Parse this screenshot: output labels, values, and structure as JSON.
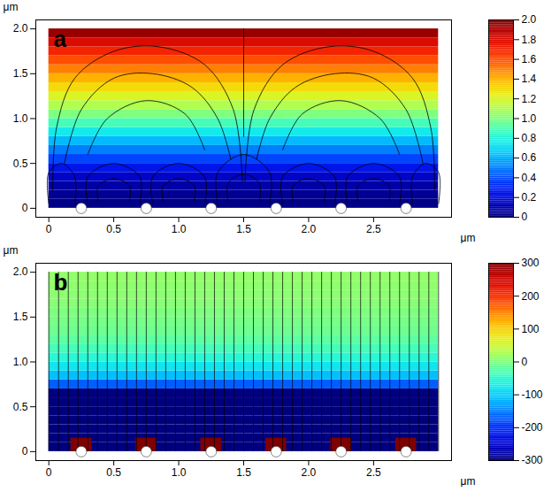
{
  "chart_data": [
    {
      "type": "heatmap",
      "label": "a",
      "xlabel": "μm",
      "ylabel": "μm",
      "xlim": [
        -0.1,
        3.1
      ],
      "ylim": [
        -0.1,
        2.1
      ],
      "xticks": [
        0,
        0.5,
        {
          "value": 1,
          "label": "1.0"
        },
        1.5,
        {
          "value": 2,
          "label": "2.0"
        },
        2.5
      ],
      "yticks": [
        0,
        0.5,
        {
          "value": 1,
          "label": "1.0"
        },
        1.5,
        {
          "value": 2,
          "label": "2.0"
        }
      ],
      "field": {
        "x_range": [
          0,
          3
        ],
        "y_edges": [
          0,
          0.1,
          0.2,
          0.3,
          0.4,
          0.5,
          0.6,
          0.7,
          0.8,
          0.9,
          1.0,
          1.1,
          1.2,
          1.3,
          1.4,
          1.5,
          1.6,
          1.7,
          1.8,
          1.9,
          2.0
        ],
        "values": [
          0.02,
          0.04,
          0.08,
          0.15,
          0.25,
          0.38,
          0.5,
          0.62,
          0.75,
          0.88,
          1.0,
          1.1,
          1.2,
          1.3,
          1.4,
          1.5,
          1.6,
          1.7,
          1.8,
          1.95
        ]
      },
      "colorbar": {
        "range": [
          0,
          2
        ],
        "ticks": [
          0,
          0.2,
          0.4,
          0.6,
          0.8,
          {
            "value": 1,
            "label": "1.0"
          },
          1.2,
          1.4,
          1.6,
          1.8,
          {
            "value": 2,
            "label": "2.0"
          }
        ]
      },
      "particles_x": [
        0.25,
        0.75,
        1.25,
        1.75,
        2.25,
        2.75
      ],
      "streamlines": [
        [
          [
            0.03,
            0.2
          ],
          [
            0.06,
            0.9
          ],
          [
            0.2,
            1.45
          ],
          [
            0.5,
            1.75
          ],
          [
            0.85,
            1.8
          ],
          [
            1.2,
            1.6
          ],
          [
            1.42,
            1.1
          ],
          [
            1.49,
            0.3
          ]
        ],
        [
          [
            0.12,
            0.5
          ],
          [
            0.25,
            1.1
          ],
          [
            0.5,
            1.45
          ],
          [
            0.8,
            1.5
          ],
          [
            1.1,
            1.35
          ],
          [
            1.3,
            1.0
          ],
          [
            1.4,
            0.55
          ]
        ],
        [
          [
            0.3,
            0.6
          ],
          [
            0.45,
            1.0
          ],
          [
            0.75,
            1.2
          ],
          [
            1.05,
            1.05
          ],
          [
            1.2,
            0.65
          ]
        ],
        [
          [
            2.97,
            0.2
          ],
          [
            2.94,
            0.9
          ],
          [
            2.8,
            1.45
          ],
          [
            2.5,
            1.75
          ],
          [
            2.15,
            1.8
          ],
          [
            1.8,
            1.6
          ],
          [
            1.58,
            1.1
          ],
          [
            1.51,
            0.3
          ]
        ],
        [
          [
            2.88,
            0.5
          ],
          [
            2.75,
            1.1
          ],
          [
            2.5,
            1.45
          ],
          [
            2.2,
            1.5
          ],
          [
            1.9,
            1.35
          ],
          [
            1.7,
            1.0
          ],
          [
            1.6,
            0.55
          ]
        ],
        [
          [
            2.7,
            0.6
          ],
          [
            2.55,
            1.0
          ],
          [
            2.25,
            1.2
          ],
          [
            1.95,
            1.05
          ],
          [
            1.8,
            0.65
          ]
        ],
        [
          [
            1.5,
            2.0
          ],
          [
            1.5,
            0.8
          ]
        ],
        [
          [
            0.0,
            0.05
          ],
          [
            0.0,
            0.4
          ],
          [
            0.1,
            0.5
          ],
          [
            0.2,
            0.35
          ],
          [
            0.2,
            0.05
          ]
        ],
        [
          [
            2.8,
            0.05
          ],
          [
            2.8,
            0.35
          ],
          [
            2.9,
            0.5
          ],
          [
            3.0,
            0.4
          ],
          [
            3.0,
            0.05
          ]
        ],
        [
          [
            0.3,
            0.05
          ],
          [
            0.3,
            0.35
          ],
          [
            0.5,
            0.5
          ],
          [
            0.7,
            0.35
          ],
          [
            0.7,
            0.05
          ]
        ],
        [
          [
            0.38,
            0.08
          ],
          [
            0.38,
            0.25
          ],
          [
            0.5,
            0.33
          ],
          [
            0.62,
            0.25
          ],
          [
            0.62,
            0.08
          ]
        ],
        [
          [
            0.8,
            0.05
          ],
          [
            0.8,
            0.35
          ],
          [
            1.0,
            0.5
          ],
          [
            1.2,
            0.35
          ],
          [
            1.2,
            0.05
          ]
        ],
        [
          [
            0.88,
            0.08
          ],
          [
            0.88,
            0.25
          ],
          [
            1.0,
            0.33
          ],
          [
            1.12,
            0.25
          ],
          [
            1.12,
            0.08
          ]
        ],
        [
          [
            1.3,
            0.05
          ],
          [
            1.3,
            0.4
          ],
          [
            1.5,
            0.6
          ],
          [
            1.7,
            0.4
          ],
          [
            1.7,
            0.05
          ]
        ],
        [
          [
            1.38,
            0.08
          ],
          [
            1.38,
            0.28
          ],
          [
            1.5,
            0.38
          ],
          [
            1.62,
            0.28
          ],
          [
            1.62,
            0.08
          ]
        ],
        [
          [
            1.8,
            0.05
          ],
          [
            1.8,
            0.35
          ],
          [
            2.0,
            0.5
          ],
          [
            2.2,
            0.35
          ],
          [
            2.2,
            0.05
          ]
        ],
        [
          [
            1.88,
            0.08
          ],
          [
            1.88,
            0.25
          ],
          [
            2.0,
            0.33
          ],
          [
            2.12,
            0.25
          ],
          [
            2.12,
            0.08
          ]
        ],
        [
          [
            2.3,
            0.05
          ],
          [
            2.3,
            0.35
          ],
          [
            2.5,
            0.5
          ],
          [
            2.7,
            0.35
          ],
          [
            2.7,
            0.05
          ]
        ],
        [
          [
            2.38,
            0.08
          ],
          [
            2.38,
            0.25
          ],
          [
            2.5,
            0.33
          ],
          [
            2.62,
            0.25
          ],
          [
            2.62,
            0.08
          ]
        ]
      ]
    },
    {
      "type": "heatmap",
      "label": "b",
      "xlabel": "μm",
      "ylabel": "μm",
      "xlim": [
        -0.1,
        3.1
      ],
      "ylim": [
        -0.1,
        2.1
      ],
      "xticks": [
        0,
        0.5,
        {
          "value": 1,
          "label": "1.0"
        },
        1.5,
        {
          "value": 2,
          "label": "2.0"
        },
        2.5
      ],
      "yticks": [
        0,
        0.5,
        {
          "value": 1,
          "label": "1.0"
        },
        1.5,
        {
          "value": 2,
          "label": "2.0"
        }
      ],
      "field": {
        "x_range": [
          0,
          3
        ],
        "y_edges": [
          0,
          0.1,
          0.2,
          0.3,
          0.4,
          0.5,
          0.6,
          0.7,
          0.8,
          0.9,
          1.0,
          1.1,
          1.2,
          1.3,
          1.4,
          1.5,
          1.6,
          1.7,
          1.8,
          1.9,
          2.0
        ],
        "values": [
          -300,
          -300,
          -300,
          -300,
          -300,
          -300,
          -300,
          -170,
          -110,
          -80,
          -55,
          -35,
          -20,
          -10,
          -5,
          0,
          5,
          8,
          10,
          12
        ]
      },
      "colorbar": {
        "range": [
          -300,
          300
        ],
        "ticks": [
          -300,
          -200,
          -100,
          0,
          100,
          200,
          300
        ]
      },
      "particles_x": [
        0.25,
        0.75,
        1.25,
        1.75,
        2.25,
        2.75
      ],
      "hotspots": {
        "x": [
          0.25,
          0.75,
          1.25,
          1.75,
          2.25,
          2.75
        ],
        "y_range": [
          0,
          0.15
        ],
        "value": 300
      },
      "streamlines_x": [
        0,
        0.075,
        0.15,
        0.225,
        0.3,
        0.375,
        0.45,
        0.525,
        0.6,
        0.675,
        0.75,
        0.825,
        0.9,
        0.975,
        1.05,
        1.125,
        1.2,
        1.275,
        1.35,
        1.425,
        1.5,
        1.575,
        1.65,
        1.725,
        1.8,
        1.875,
        1.95,
        2.025,
        2.1,
        2.175,
        2.25,
        2.325,
        2.4,
        2.475,
        2.55,
        2.625,
        2.7,
        2.775,
        2.85,
        2.925,
        3
      ]
    }
  ]
}
